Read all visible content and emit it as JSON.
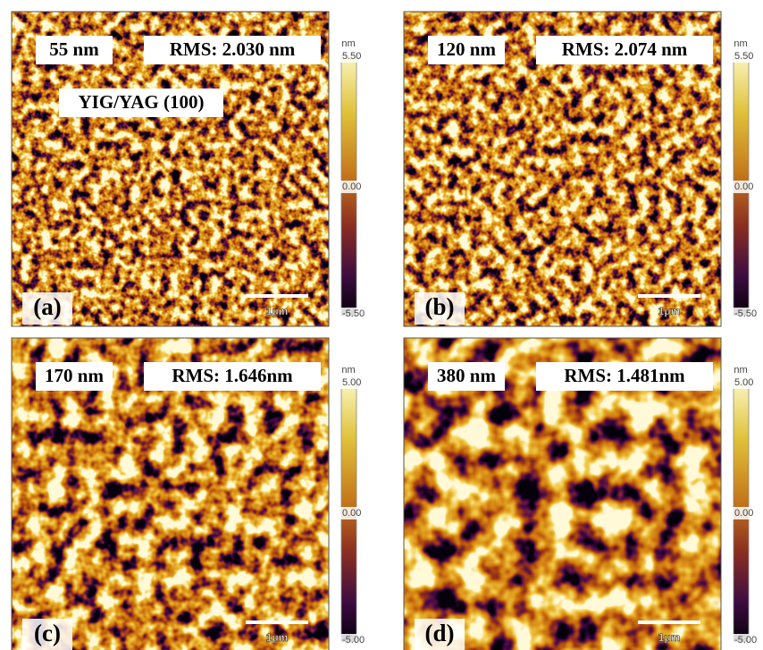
{
  "panels": [
    {
      "letter": "(a)",
      "thickness": "55 nm",
      "rms": "RMS: 2.030 nm",
      "note": "YIG/YAG (100)",
      "scale_bar": "1μm",
      "colorbar": {
        "unit": "nm",
        "top": "5.50",
        "middle": "0.00",
        "bottom": "-5.50"
      }
    },
    {
      "letter": "(b)",
      "thickness": "120 nm",
      "rms": "RMS: 2.074 nm",
      "scale_bar": "1μm",
      "colorbar": {
        "unit": "nm",
        "top": "5.50",
        "middle": "0.00",
        "bottom": "-5.50"
      }
    },
    {
      "letter": "(c)",
      "thickness": "170 nm",
      "rms": "RMS: 1.646nm",
      "scale_bar": "1μm",
      "colorbar": {
        "unit": "nm",
        "top": "5.00",
        "middle": "0.00",
        "bottom": "-5.00"
      }
    },
    {
      "letter": "(d)",
      "thickness": "380 nm",
      "rms": "RMS: 1.481nm",
      "scale_bar": "1μm",
      "colorbar": {
        "unit": "nm",
        "top": "5.00",
        "middle": "0.00",
        "bottom": "-5.00"
      }
    }
  ]
}
